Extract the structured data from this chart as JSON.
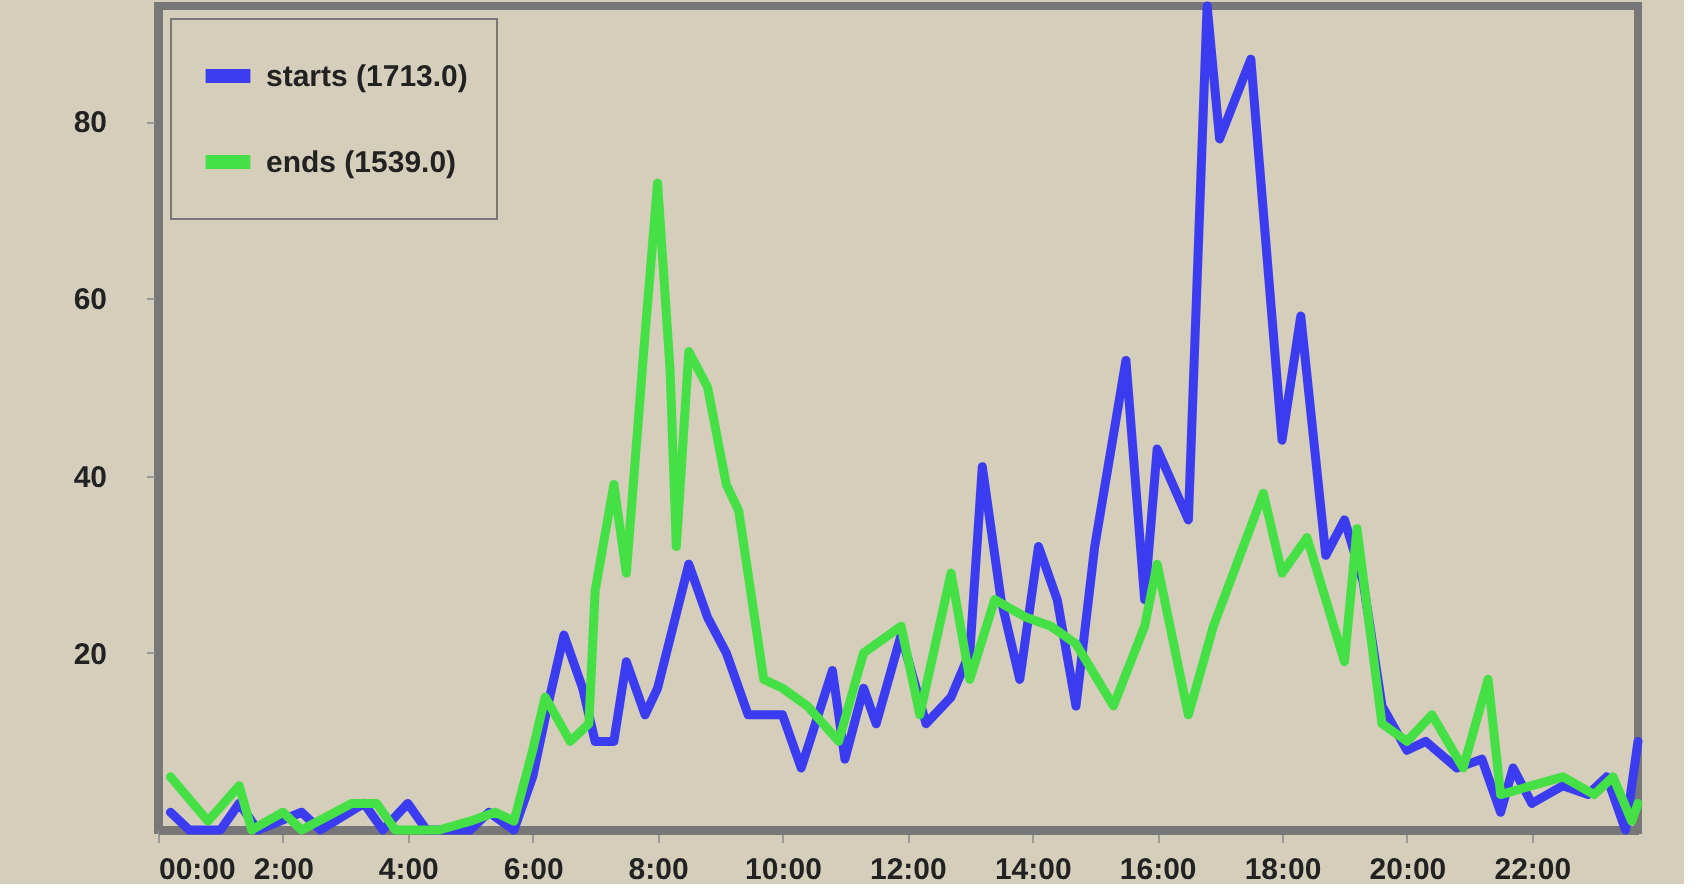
{
  "chart_data": {
    "type": "line",
    "xlim": [
      0,
      23.7
    ],
    "ylim": [
      0,
      93
    ],
    "xticks": [
      {
        "value": 0,
        "label": "00:00"
      },
      {
        "value": 2,
        "label": "2:00"
      },
      {
        "value": 4,
        "label": "4:00"
      },
      {
        "value": 6,
        "label": "6:00"
      },
      {
        "value": 8,
        "label": "8:00"
      },
      {
        "value": 10,
        "label": "10:00"
      },
      {
        "value": 12,
        "label": "12:00"
      },
      {
        "value": 14,
        "label": "14:00"
      },
      {
        "value": 16,
        "label": "16:00"
      },
      {
        "value": 18,
        "label": "18:00"
      },
      {
        "value": 20,
        "label": "20:00"
      },
      {
        "value": 22,
        "label": "22:00"
      }
    ],
    "yticks": [
      20,
      40,
      60,
      80
    ],
    "grid": false,
    "legend": "top left",
    "marker": "none",
    "line_style": "solid",
    "series": [
      {
        "name": "starts (1713.0)",
        "color": "#3b3bef",
        "x": [
          0.2,
          0.5,
          1.0,
          1.3,
          1.6,
          2.3,
          2.6,
          3.3,
          3.6,
          4.0,
          4.3,
          5.0,
          5.3,
          5.7,
          6.0,
          6.24,
          6.5,
          6.8,
          7.0,
          7.3,
          7.5,
          7.8,
          8.0,
          8.5,
          8.8,
          9.1,
          9.45,
          10.0,
          10.3,
          10.8,
          11.0,
          11.3,
          11.5,
          11.9,
          12.3,
          12.7,
          13.0,
          13.2,
          13.5,
          13.8,
          14.1,
          14.4,
          14.7,
          15.0,
          15.5,
          15.8,
          16.0,
          16.5,
          16.8,
          17.0,
          17.5,
          18.0,
          18.3,
          18.7,
          19.0,
          19.3,
          19.6,
          20.0,
          20.3,
          20.8,
          21.2,
          21.5,
          21.7,
          22.0,
          22.5,
          22.9,
          23.2,
          23.5,
          23.7
        ],
        "values": [
          2,
          0,
          0,
          3,
          0,
          2,
          0,
          3,
          0,
          3,
          0,
          0,
          2,
          0,
          6,
          14,
          22,
          16,
          10,
          10,
          19,
          13,
          16,
          30,
          24,
          20,
          13,
          13,
          7,
          18,
          8,
          16,
          12,
          22,
          12,
          15,
          20,
          41,
          26,
          17,
          32,
          26,
          14,
          32,
          53,
          26,
          43,
          35,
          93,
          78,
          87,
          44,
          58,
          31,
          35,
          28,
          14,
          9,
          10,
          7,
          8,
          2,
          7,
          3,
          5,
          4,
          6,
          0,
          10
        ]
      },
      {
        "name": "ends (1539.0)",
        "color": "#45e045",
        "x": [
          0.2,
          0.8,
          1.3,
          1.5,
          2.0,
          2.3,
          3.1,
          3.5,
          3.8,
          4.5,
          5.0,
          5.4,
          5.7,
          6.0,
          6.2,
          6.6,
          6.9,
          7.0,
          7.3,
          7.5,
          7.8,
          8.0,
          8.2,
          8.3,
          8.5,
          8.8,
          9.1,
          9.3,
          9.7,
          10.0,
          10.4,
          10.9,
          11.3,
          11.9,
          12.2,
          12.7,
          13.0,
          13.4,
          13.9,
          14.3,
          14.7,
          15.3,
          15.8,
          16.0,
          16.5,
          16.9,
          17.7,
          18.0,
          18.4,
          19.0,
          19.2,
          19.6,
          20.0,
          20.4,
          20.9,
          21.3,
          21.5,
          22.0,
          22.5,
          23.0,
          23.3,
          23.6,
          23.7
        ],
        "values": [
          6,
          1,
          5,
          0,
          2,
          0,
          3,
          3,
          0,
          0,
          1,
          2,
          1,
          9,
          15,
          10,
          12,
          27,
          39,
          29,
          56,
          73,
          52,
          32,
          54,
          50,
          39,
          36,
          17,
          16,
          14,
          10,
          20,
          23,
          13,
          29,
          17,
          26,
          24,
          23,
          21,
          14,
          23,
          30,
          13,
          23,
          38,
          29,
          33,
          19,
          34,
          12,
          10,
          13,
          7,
          17,
          4,
          5,
          6,
          4,
          6,
          1,
          3
        ]
      }
    ]
  }
}
